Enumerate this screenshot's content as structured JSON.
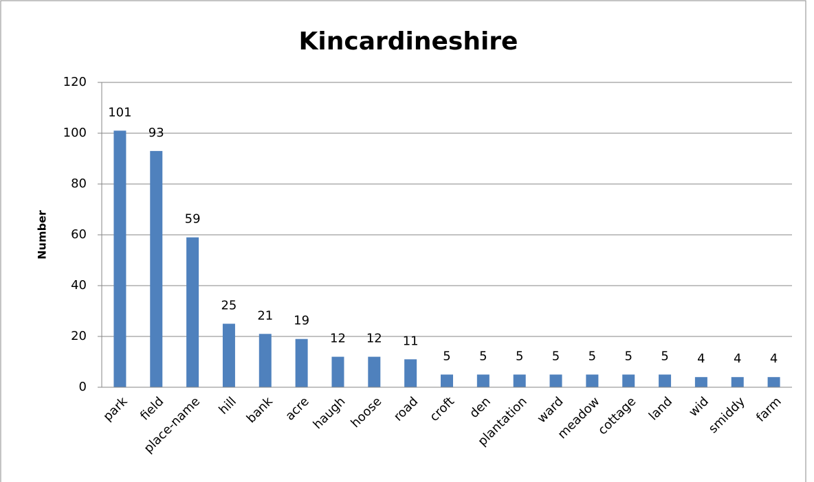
{
  "chart_data": {
    "type": "bar",
    "title": "Kincardineshire",
    "y_label": "Number",
    "categories": [
      "park",
      "field",
      "place-name",
      "hill",
      "bank",
      "acre",
      "haugh",
      "hoose",
      "road",
      "croft",
      "den",
      "plantation",
      "ward",
      "meadow",
      "cottage",
      "land",
      "wid",
      "smiddy",
      "farm"
    ],
    "values": [
      101,
      93,
      59,
      25,
      21,
      19,
      12,
      12,
      11,
      5,
      5,
      5,
      5,
      5,
      5,
      5,
      4,
      4,
      4
    ],
    "color": "#4f81bd",
    "ylim": [
      0,
      120
    ],
    "yticks": [
      0,
      20,
      40,
      60,
      80,
      100,
      120
    ],
    "grid": true
  }
}
